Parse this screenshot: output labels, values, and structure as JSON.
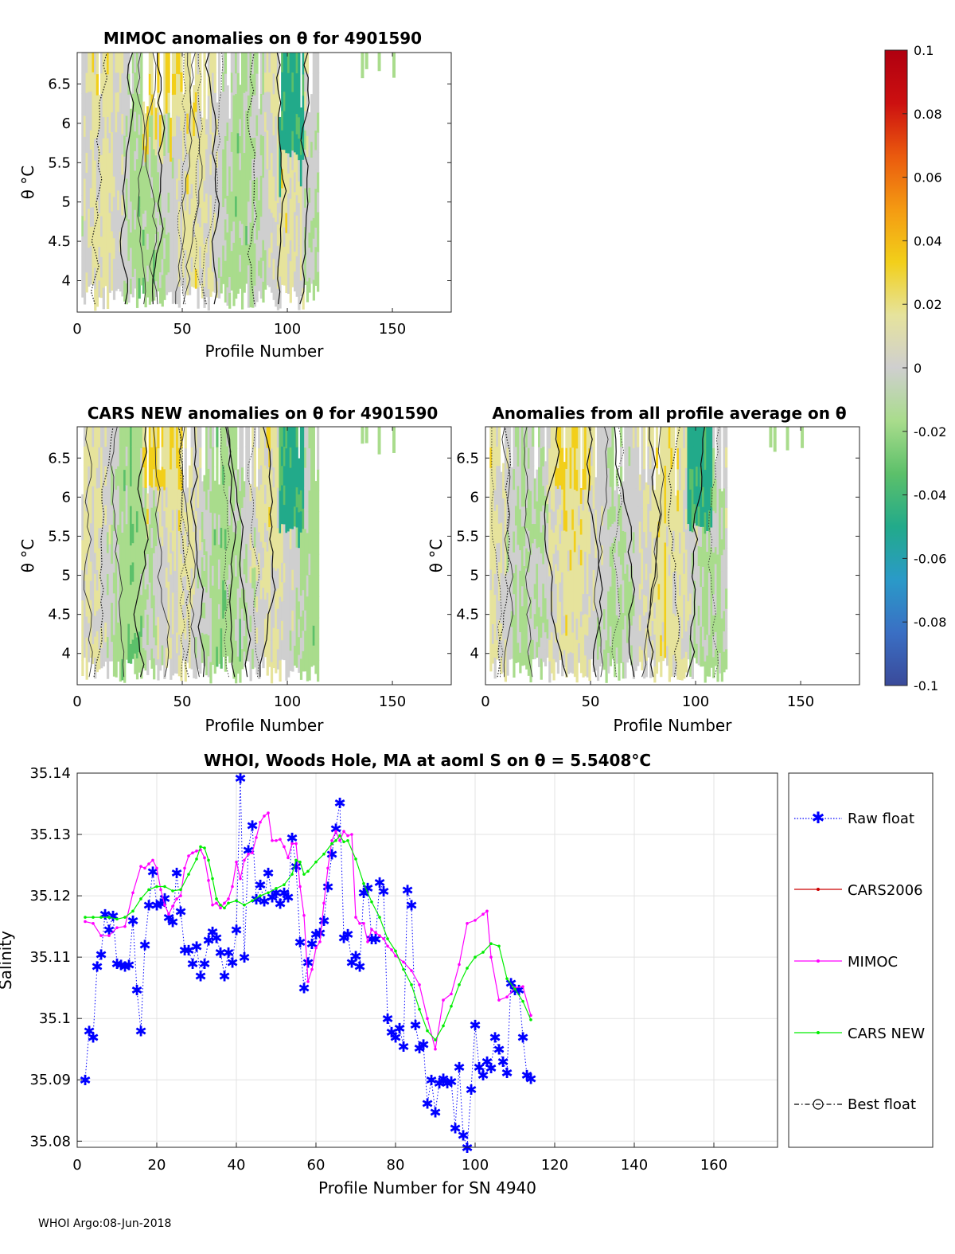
{
  "footer": "WHOI Argo:08-Jun-2018",
  "colorbar": {
    "ticks": [
      "0.1",
      "0.08",
      "0.06",
      "0.04",
      "0.02",
      "0",
      "-0.02",
      "-0.04",
      "-0.06",
      "-0.08",
      "-0.1"
    ],
    "range": [
      -0.1,
      0.1
    ],
    "colors": [
      "#3a4a9a",
      "#3a6fc4",
      "#2a9ac8",
      "#22aa8a",
      "#5cc06a",
      "#a9dc8c",
      "#cfcfcf",
      "#e6e39c",
      "#f2cf1a",
      "#f49a12",
      "#ea5a0e",
      "#cc1010",
      "#b00010"
    ]
  },
  "panels": [
    {
      "id": "mimoc",
      "title": "MIMOC anomalies on θ  for 4901590",
      "xlabel": "Profile Number",
      "ylabel": "θ °C",
      "x_ticks": [
        "0",
        "50",
        "100",
        "150"
      ],
      "y_ticks": [
        "6.5",
        "6",
        "5.5",
        "5",
        "4.5",
        "4"
      ],
      "xlim": [
        0,
        178
      ],
      "ylim": [
        3.6,
        6.9
      ]
    },
    {
      "id": "cars-new",
      "title": "CARS NEW anomalies on θ for 4901590",
      "xlabel": "Profile Number",
      "ylabel": "θ °C",
      "x_ticks": [
        "0",
        "50",
        "100",
        "150"
      ],
      "y_ticks": [
        "6.5",
        "6",
        "5.5",
        "5",
        "4.5",
        "4"
      ],
      "xlim": [
        0,
        178
      ],
      "ylim": [
        3.6,
        6.9
      ]
    },
    {
      "id": "all-profile",
      "title": "Anomalies from all profile average on θ",
      "xlabel": "Profile Number",
      "ylabel": "θ °C",
      "x_ticks": [
        "0",
        "50",
        "100",
        "150"
      ],
      "y_ticks": [
        "6.5",
        "6",
        "5.5",
        "5",
        "4.5",
        "4"
      ],
      "xlim": [
        0,
        178
      ],
      "ylim": [
        3.6,
        6.9
      ]
    }
  ],
  "chart_data": {
    "type": "line",
    "title": "WHOI, Woods Hole, MA at aoml S on θ = 5.5408°C",
    "xlabel": "Profile Number for SN 4940",
    "ylabel": "Salinity",
    "xlim": [
      0,
      176
    ],
    "ylim": [
      35.079,
      35.14
    ],
    "x_ticks": [
      "0",
      "20",
      "40",
      "60",
      "80",
      "100",
      "120",
      "140",
      "160"
    ],
    "y_ticks": [
      "35.14",
      "35.13",
      "35.12",
      "35.11",
      "35.1",
      "35.09",
      "35.08"
    ],
    "grid": true,
    "legend": [
      "Raw float",
      "CARS2006",
      "MIMOC",
      "CARS NEW",
      "Best float"
    ],
    "series": [
      {
        "name": "Raw float",
        "color": "#0000ff",
        "x": [
          2,
          3,
          4,
          5,
          6,
          7,
          8,
          9,
          10,
          11,
          12,
          13,
          14,
          15,
          16,
          17,
          18,
          19,
          20,
          21,
          22,
          23,
          24,
          25,
          26,
          27,
          28,
          29,
          30,
          31,
          32,
          33,
          34,
          35,
          36,
          37,
          38,
          39,
          40,
          41,
          42,
          43,
          44,
          45,
          46,
          47,
          48,
          49,
          50,
          51,
          52,
          53,
          54,
          55,
          56,
          57,
          58,
          59,
          60,
          61,
          62,
          63,
          64,
          65,
          66,
          67,
          68,
          69,
          70,
          71,
          72,
          73,
          74,
          75,
          76,
          77,
          78,
          79,
          80,
          81,
          82,
          83,
          84,
          85,
          86,
          87,
          88,
          89,
          90,
          91,
          92,
          93,
          94,
          95,
          96,
          97,
          98,
          99,
          100,
          101,
          102,
          103,
          104,
          105,
          106,
          107,
          108,
          109,
          110,
          111,
          112,
          113,
          114
        ],
        "values": [
          35.09,
          35.098,
          35.097,
          35.1085,
          35.1105,
          35.117,
          35.1145,
          35.1168,
          35.109,
          35.1088,
          35.1085,
          35.1088,
          35.116,
          35.1047,
          35.098,
          35.112,
          35.1185,
          35.124,
          35.1185,
          35.1188,
          35.1196,
          35.1165,
          35.1158,
          35.1238,
          35.1175,
          35.1112,
          35.1112,
          35.109,
          35.1118,
          35.107,
          35.109,
          35.1128,
          35.1142,
          35.1132,
          35.1108,
          35.107,
          35.1108,
          35.1092,
          35.1145,
          35.1392,
          35.11,
          35.1275,
          35.1315,
          35.1195,
          35.1218,
          35.1192,
          35.1238,
          35.1198,
          35.1205,
          35.1188,
          35.1205,
          35.1198,
          35.1295,
          35.1248,
          35.1125,
          35.105,
          35.1092,
          35.1122,
          35.1138,
          35.114,
          35.116,
          35.1215,
          35.1268,
          35.131,
          35.1352,
          35.1132,
          35.1138,
          35.1092,
          35.1102,
          35.1085,
          35.1205,
          35.1213,
          35.113,
          35.113,
          35.1222,
          35.1208,
          35.1,
          35.0978,
          35.097,
          35.0985,
          35.0955,
          35.121,
          35.1185,
          35.099,
          35.0952,
          35.0958,
          35.0862,
          35.09,
          35.0848,
          35.0895,
          35.0902,
          35.0895,
          35.0898,
          35.0822,
          35.0921,
          35.081,
          35.079,
          35.0885,
          35.099,
          35.0921,
          35.0908,
          35.093,
          35.092,
          35.097,
          35.095,
          35.093,
          35.0912,
          35.1058,
          35.1047,
          35.1047,
          35.097,
          35.0908,
          35.0902
        ]
      },
      {
        "name": "MIMOC",
        "color": "#ff00ff",
        "x": [
          2,
          4,
          6,
          8,
          10,
          12,
          14,
          16,
          17,
          18,
          19,
          20,
          21,
          22,
          23,
          24,
          25,
          26,
          27,
          28,
          29,
          30,
          31,
          32,
          33,
          34,
          35,
          36,
          37,
          38,
          39,
          40,
          41,
          42,
          43,
          44,
          45,
          46,
          47,
          48,
          49,
          50,
          51,
          52,
          53,
          54,
          55,
          56,
          57,
          58,
          59,
          60,
          61,
          62,
          63,
          64,
          65,
          66,
          67,
          68,
          69,
          70,
          71,
          72,
          73,
          74,
          75,
          76,
          77,
          78,
          79,
          80,
          82,
          84,
          86,
          88,
          90,
          92,
          94,
          96,
          98,
          100,
          102,
          103,
          104,
          106,
          108,
          110,
          112,
          114
        ],
        "values": [
          35.1158,
          35.1155,
          35.1135,
          35.1135,
          35.1148,
          35.115,
          35.1205,
          35.1248,
          35.1245,
          35.1252,
          35.1258,
          35.1245,
          35.121,
          35.1185,
          35.117,
          35.1183,
          35.1195,
          35.12,
          35.1245,
          35.1265,
          35.127,
          35.1273,
          35.1275,
          35.1262,
          35.1225,
          35.1185,
          35.1188,
          35.118,
          35.1188,
          35.1195,
          35.1215,
          35.1255,
          35.1228,
          35.1258,
          35.1268,
          35.127,
          35.1295,
          35.132,
          35.133,
          35.1335,
          35.129,
          35.129,
          35.1292,
          35.128,
          35.1262,
          35.1285,
          35.1285,
          35.1215,
          35.1168,
          35.106,
          35.108,
          35.1115,
          35.1125,
          35.1188,
          35.1245,
          35.129,
          35.1305,
          35.129,
          35.1305,
          35.1298,
          35.13,
          35.1165,
          35.1155,
          35.1155,
          35.1125,
          35.1145,
          35.114,
          35.1135,
          35.113,
          35.1118,
          35.1112,
          35.1102,
          35.1092,
          35.1078,
          35.1055,
          35.1,
          35.095,
          35.103,
          35.104,
          35.1088,
          35.1155,
          35.116,
          35.117,
          35.1175,
          35.11,
          35.103,
          35.1035,
          35.105,
          35.1052,
          35.1005
        ]
      },
      {
        "name": "CARS NEW",
        "color": "#00ee00",
        "x": [
          2,
          4,
          6,
          8,
          10,
          12,
          14,
          16,
          18,
          20,
          22,
          24,
          26,
          28,
          30,
          31,
          32,
          33,
          34,
          35,
          36,
          37,
          38,
          40,
          42,
          44,
          46,
          48,
          50,
          52,
          54,
          55,
          56,
          57,
          58,
          60,
          62,
          64,
          65,
          66,
          67,
          68,
          70,
          72,
          74,
          76,
          78,
          80,
          82,
          84,
          86,
          88,
          90,
          92,
          94,
          96,
          98,
          100,
          102,
          104,
          106,
          108,
          110,
          112,
          114
        ],
        "values": [
          35.1165,
          35.1165,
          35.1165,
          35.1165,
          35.1162,
          35.1165,
          35.1175,
          35.1195,
          35.121,
          35.1215,
          35.1215,
          35.1208,
          35.121,
          35.1235,
          35.126,
          35.128,
          35.1278,
          35.1258,
          35.1228,
          35.1195,
          35.1185,
          35.118,
          35.1188,
          35.1192,
          35.1185,
          35.1192,
          35.12,
          35.1205,
          35.1212,
          35.1218,
          35.1235,
          35.1258,
          35.1255,
          35.1235,
          35.124,
          35.1255,
          35.1268,
          35.1285,
          35.129,
          35.1298,
          35.1288,
          35.129,
          35.126,
          35.122,
          35.119,
          35.1165,
          35.113,
          35.111,
          35.108,
          35.1055,
          35.1015,
          35.098,
          35.0965,
          35.0988,
          35.102,
          35.1055,
          35.1082,
          35.11,
          35.1108,
          35.1122,
          35.1118,
          35.1065,
          35.1048,
          35.1028,
          35.0998
        ]
      },
      {
        "name": "CARS2006",
        "color": "#cc0000",
        "x": [],
        "values": []
      },
      {
        "name": "Best float",
        "color": "#000000",
        "x": [],
        "values": []
      }
    ]
  }
}
